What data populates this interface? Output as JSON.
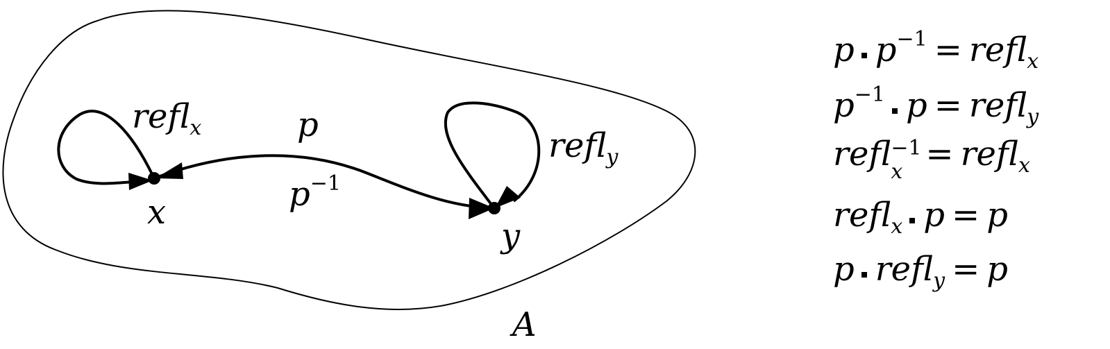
{
  "diagram": {
    "space_label": "A",
    "point_x_label": "x",
    "point_y_label": "y",
    "loop_x": {
      "base": "refl",
      "sub": "x"
    },
    "loop_y": {
      "base": "refl",
      "sub": "y"
    },
    "path_forward": "p",
    "path_inverse": {
      "base": "p",
      "sup": "−1"
    }
  },
  "equations": [
    {
      "lhs": [
        "p",
        "•",
        "p^{−1}"
      ],
      "rhs": "refl_x",
      "text": "p • p⁻¹ = refl_x"
    },
    {
      "lhs": [
        "p^{−1}",
        "•",
        "p"
      ],
      "rhs": "refl_y",
      "text": "p⁻¹ • p = refl_y"
    },
    {
      "lhs": [
        "refl_x^{−1}"
      ],
      "rhs": "refl_x",
      "text": "refl_x⁻¹ = refl_x"
    },
    {
      "lhs": [
        "refl_x",
        "•",
        "p"
      ],
      "rhs": "p",
      "text": "refl_x • p = p"
    },
    {
      "lhs": [
        "p",
        "•",
        "refl_y"
      ],
      "rhs": "p",
      "text": "p • refl_y = p"
    }
  ],
  "parts": {
    "p": "p",
    "minus_one": "−1",
    "refl": "refl",
    "x": "x",
    "y": "y",
    "equals": "="
  }
}
